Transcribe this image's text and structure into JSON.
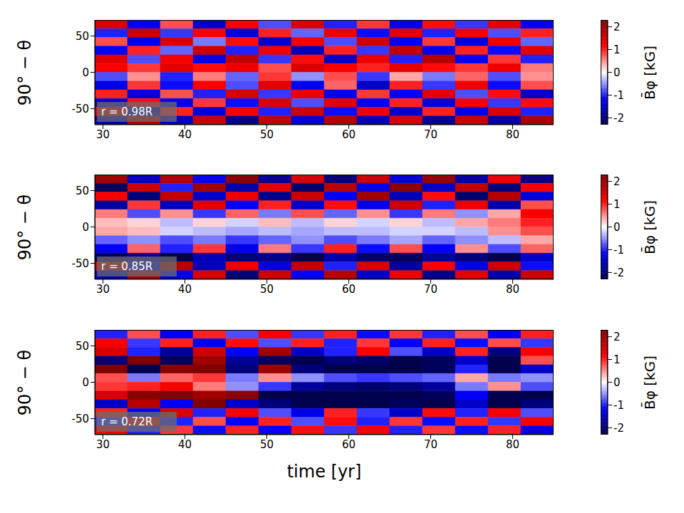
{
  "chart_data": [
    {
      "type": "heatmap",
      "annotation": "r = 0.98R",
      "ylabel": "90° − θ",
      "xlim": [
        29,
        85
      ],
      "xticks": [
        30,
        40,
        50,
        60,
        70,
        80
      ],
      "ylim": [
        -72,
        72
      ],
      "yticks": [
        -50,
        0,
        50
      ],
      "x_edges": [
        29,
        33,
        37,
        41,
        45,
        49,
        53,
        57,
        61,
        65,
        69,
        73,
        77,
        81,
        85
      ],
      "y_edges": [
        72,
        60,
        48,
        36,
        24,
        12,
        0,
        -12,
        -24,
        -36,
        -48,
        -60,
        -72
      ],
      "cells": [
        [
          1.5,
          -1.2,
          0.8,
          -1.5,
          1.2,
          -0.8,
          1.5,
          -1.0,
          0.9,
          -1.3,
          1.1,
          -0.9,
          1.4,
          -1.2
        ],
        [
          -1.0,
          1.6,
          -0.9,
          1.2,
          -1.4,
          1.0,
          -0.7,
          1.3,
          -1.1,
          1.4,
          -1.0,
          1.2,
          -0.8,
          1.0
        ],
        [
          0.8,
          -1.3,
          1.5,
          -0.6,
          1.1,
          -1.5,
          1.2,
          -0.8,
          1.6,
          -1.2,
          0.9,
          -1.4,
          1.3,
          -0.7
        ],
        [
          -1.2,
          1.0,
          -0.7,
          1.6,
          -1.0,
          1.3,
          -1.6,
          1.0,
          -0.9,
          1.7,
          -1.3,
          1.0,
          -1.1,
          1.4
        ],
        [
          1.4,
          -0.8,
          1.2,
          -1.3,
          1.7,
          -0.9,
          1.1,
          -1.5,
          1.3,
          -1.0,
          1.8,
          -1.2,
          0.9,
          -1.0
        ],
        [
          1.2,
          0.9,
          1.4,
          1.1,
          1.3,
          0.8,
          1.5,
          1.2,
          1.0,
          1.4,
          1.1,
          0.9,
          1.3,
          0.6
        ],
        [
          -0.8,
          0.5,
          -1.0,
          0.6,
          -0.7,
          0.9,
          -0.5,
          0.8,
          -0.9,
          0.4,
          -0.6,
          0.7,
          -0.8,
          0.5
        ],
        [
          -1.3,
          0.9,
          -1.1,
          1.2,
          -0.8,
          1.4,
          -1.2,
          0.7,
          -1.5,
          1.0,
          -0.9,
          1.3,
          -1.1,
          0.8
        ],
        [
          1.0,
          -1.4,
          0.8,
          -1.0,
          1.5,
          -0.9,
          1.3,
          -1.3,
          0.9,
          -1.2,
          1.4,
          -0.8,
          1.1,
          -1.5
        ],
        [
          -1.5,
          1.1,
          -1.3,
          0.9,
          -1.1,
          1.5,
          -0.8,
          1.4,
          -1.2,
          1.0,
          -1.4,
          1.2,
          -0.9,
          1.1
        ],
        [
          1.3,
          -1.6,
          1.0,
          -1.4,
          1.2,
          -1.0,
          1.6,
          -1.1,
          1.3,
          -1.5,
          1.0,
          -1.3,
          1.5,
          -1.0
        ],
        [
          -1.7,
          1.8,
          -1.5,
          1.6,
          -1.9,
          1.7,
          -1.4,
          1.8,
          -1.6,
          1.5,
          -1.8,
          1.6,
          -1.7,
          1.9
        ]
      ],
      "colorbar": {
        "label": "B̄φ [kG]",
        "range": [
          -2.3,
          2.3
        ],
        "ticks": [
          -2,
          -1,
          0,
          1,
          2
        ]
      }
    },
    {
      "type": "heatmap",
      "annotation": "r = 0.85R",
      "ylabel": "90° − θ",
      "xlim": [
        29,
        85
      ],
      "xticks": [
        30,
        40,
        50,
        60,
        70,
        80
      ],
      "ylim": [
        -72,
        72
      ],
      "yticks": [
        -50,
        0,
        50
      ],
      "x_edges": [
        29,
        33,
        37,
        41,
        45,
        49,
        53,
        57,
        61,
        65,
        69,
        73,
        77,
        81,
        85
      ],
      "y_edges": [
        72,
        60,
        48,
        36,
        24,
        12,
        0,
        -12,
        -24,
        -36,
        -48,
        -60,
        -72
      ],
      "cells": [
        [
          2.0,
          -1.5,
          1.8,
          -1.2,
          2.2,
          -1.8,
          1.5,
          -2.0,
          1.6,
          -1.4,
          2.1,
          -1.7,
          1.3,
          -1.9
        ],
        [
          -2.2,
          1.6,
          -1.0,
          2.0,
          -1.7,
          1.4,
          -2.1,
          1.8,
          -1.3,
          2.2,
          -1.5,
          1.7,
          -2.0,
          1.2
        ],
        [
          1.2,
          -2.0,
          1.7,
          -1.5,
          1.3,
          -1.9,
          1.6,
          -1.2,
          2.0,
          -1.6,
          1.1,
          -2.1,
          1.8,
          -1.4
        ],
        [
          -1.8,
          0.9,
          -1.6,
          1.4,
          -1.2,
          1.0,
          -1.5,
          1.1,
          -1.3,
          1.6,
          -1.0,
          1.3,
          -1.7,
          0.8
        ],
        [
          0.6,
          -0.8,
          0.5,
          -0.9,
          0.7,
          -0.6,
          0.8,
          -0.7,
          0.5,
          -0.9,
          0.6,
          -0.5,
          0.4,
          1.2
        ],
        [
          0.3,
          0.2,
          -0.3,
          0.2,
          -0.2,
          0.3,
          -0.3,
          0.2,
          -0.2,
          0.2,
          -0.3,
          0.4,
          0.6,
          1.0
        ],
        [
          0.4,
          0.3,
          -0.2,
          -0.3,
          -0.4,
          -0.3,
          -0.4,
          -0.3,
          -0.3,
          -0.2,
          -0.2,
          -0.3,
          0.5,
          0.8
        ],
        [
          -0.7,
          -0.5,
          -0.8,
          -0.6,
          -0.9,
          -0.7,
          -0.5,
          -0.8,
          -0.6,
          -0.4,
          -0.7,
          -0.5,
          -0.3,
          0.4
        ],
        [
          -1.2,
          0.7,
          -1.0,
          0.9,
          -1.3,
          0.6,
          -0.9,
          1.0,
          -1.1,
          0.8,
          -1.2,
          0.5,
          -0.8,
          0.7
        ],
        [
          -2.2,
          -1.8,
          -2.3,
          -1.6,
          -2.0,
          -1.9,
          -2.3,
          -1.7,
          -2.1,
          -2.2,
          -1.8,
          -2.0,
          -2.3,
          -1.5
        ],
        [
          1.5,
          -1.2,
          1.8,
          -1.6,
          1.3,
          -1.4,
          1.7,
          -1.0,
          1.5,
          -1.8,
          1.2,
          -1.3,
          1.6,
          -1.1
        ],
        [
          -1.6,
          1.9,
          -1.3,
          1.5,
          -2.0,
          1.6,
          -1.2,
          1.8,
          -1.5,
          1.3,
          -1.9,
          1.4,
          -1.7,
          1.6
        ]
      ],
      "colorbar": {
        "label": "B̄φ [kG]",
        "range": [
          -2.3,
          2.3
        ],
        "ticks": [
          -2,
          -1,
          0,
          1,
          2
        ]
      }
    },
    {
      "type": "heatmap",
      "annotation": "r = 0.72R",
      "ylabel": "90° − θ",
      "xlabel": "time [yr]",
      "xlim": [
        29,
        85
      ],
      "xticks": [
        30,
        40,
        50,
        60,
        70,
        80
      ],
      "ylim": [
        -72,
        72
      ],
      "yticks": [
        -50,
        0,
        50
      ],
      "x_edges": [
        29,
        33,
        37,
        41,
        45,
        49,
        53,
        57,
        61,
        65,
        69,
        73,
        77,
        81,
        85
      ],
      "y_edges": [
        72,
        60,
        48,
        36,
        24,
        12,
        0,
        -12,
        -24,
        -36,
        -48,
        -60,
        -72
      ],
      "cells": [
        [
          -1.0,
          0.8,
          -1.2,
          1.0,
          -0.8,
          1.2,
          -0.9,
          1.0,
          -1.1,
          0.9,
          -1.0,
          0.8,
          -1.2,
          1.0
        ],
        [
          1.2,
          -0.9,
          1.0,
          -1.3,
          1.1,
          -0.8,
          1.0,
          -1.0,
          0.9,
          -1.2,
          1.0,
          -1.1,
          0.8,
          -0.9
        ],
        [
          1.5,
          -1.0,
          -1.8,
          1.6,
          -1.2,
          2.0,
          -1.5,
          -1.0,
          1.2,
          -0.8,
          -1.5,
          1.0,
          -2.0,
          1.2
        ],
        [
          -2.0,
          2.3,
          -2.2,
          2.0,
          -1.8,
          -2.2,
          -2.3,
          -2.0,
          -2.1,
          -2.3,
          -2.2,
          -1.5,
          -2.3,
          0.8
        ],
        [
          2.3,
          -2.3,
          2.2,
          2.3,
          -2.0,
          2.0,
          -2.0,
          -2.3,
          -2.3,
          -2.3,
          -2.2,
          -1.0,
          -2.3,
          -1.5
        ],
        [
          0.8,
          -0.6,
          0.7,
          0.9,
          -0.6,
          0.5,
          -0.5,
          -0.8,
          -0.9,
          -0.8,
          -0.7,
          0.4,
          -0.6,
          -0.5
        ],
        [
          0.9,
          1.0,
          1.2,
          0.6,
          -0.5,
          -0.9,
          -1.8,
          -2.0,
          -2.1,
          -2.0,
          -1.8,
          -0.6,
          0.5,
          -0.8
        ],
        [
          1.5,
          2.2,
          2.3,
          2.0,
          2.2,
          -2.3,
          -2.3,
          -2.3,
          -2.3,
          -2.3,
          -2.2,
          -1.2,
          -2.3,
          -2.3
        ],
        [
          -1.5,
          1.8,
          -1.2,
          2.3,
          -1.5,
          -2.0,
          -2.3,
          -2.3,
          -2.3,
          -2.2,
          -2.3,
          -1.5,
          -2.3,
          -2.0
        ],
        [
          1.0,
          -1.2,
          1.5,
          -1.0,
          1.2,
          -0.8,
          -1.3,
          1.0,
          -0.9,
          -1.5,
          1.1,
          -1.0,
          1.2,
          -0.8
        ],
        [
          -0.9,
          1.1,
          -1.0,
          0.8,
          -1.2,
          1.0,
          -0.8,
          1.1,
          -1.0,
          0.9,
          -1.1,
          1.0,
          -0.9,
          1.2
        ],
        [
          1.2,
          -1.0,
          0.9,
          -1.1,
          1.0,
          -1.2,
          1.1,
          -0.9,
          1.2,
          -1.0,
          0.9,
          -1.1,
          1.0,
          -1.3
        ]
      ],
      "colorbar": {
        "label": "B̄φ [kG]",
        "range": [
          -2.3,
          2.3
        ],
        "ticks": [
          -2,
          -1,
          0,
          1,
          2
        ]
      }
    }
  ]
}
